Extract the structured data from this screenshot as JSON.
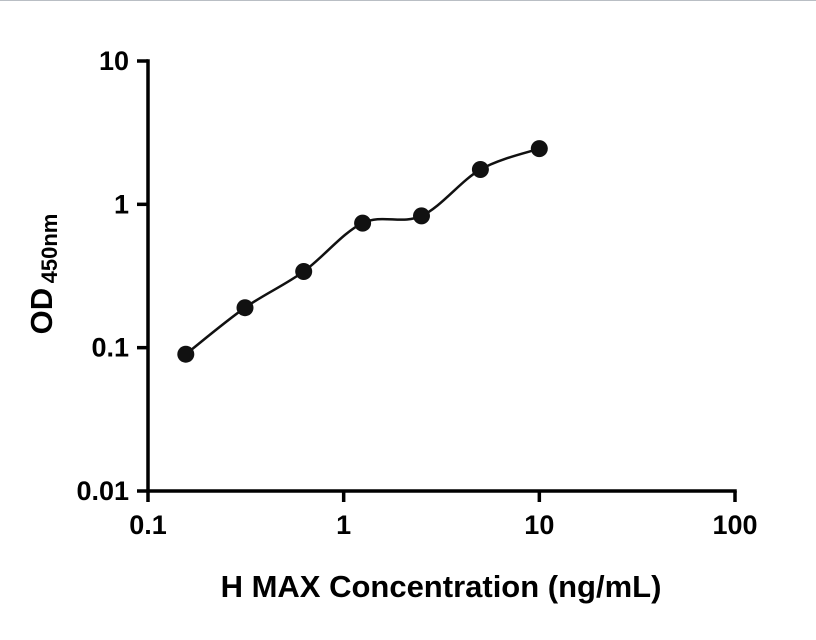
{
  "figure": {
    "background": "#ffffff",
    "axis_color": "#000000",
    "text_color": "#000000"
  },
  "chart_data": {
    "type": "scatter",
    "title": "",
    "xlabel": "H MAX Concentration (ng/mL)",
    "ylabel": "OD450nm",
    "ylabel_main": "OD",
    "ylabel_sub": "450nm",
    "x_scale": "log",
    "y_scale": "log",
    "xlim": [
      0.1,
      100
    ],
    "ylim": [
      0.01,
      10
    ],
    "grid": false,
    "legend": "none",
    "x_ticks": [
      {
        "value": 0.1,
        "label": "0.1"
      },
      {
        "value": 1,
        "label": "1"
      },
      {
        "value": 10,
        "label": "10"
      },
      {
        "value": 100,
        "label": "100"
      }
    ],
    "y_ticks": [
      {
        "value": 0.01,
        "label": "0.01"
      },
      {
        "value": 0.1,
        "label": "0.1"
      },
      {
        "value": 1,
        "label": "1"
      },
      {
        "value": 10,
        "label": "10"
      }
    ],
    "series": [
      {
        "marker": "circle",
        "marker_color": "#111111",
        "line_color": "#111111",
        "points": [
          {
            "x": 0.156,
            "y": 0.09
          },
          {
            "x": 0.313,
            "y": 0.19
          },
          {
            "x": 0.625,
            "y": 0.34
          },
          {
            "x": 1.25,
            "y": 0.74
          },
          {
            "x": 2.5,
            "y": 0.83
          },
          {
            "x": 5,
            "y": 1.75
          },
          {
            "x": 10,
            "y": 2.45
          }
        ]
      }
    ]
  }
}
